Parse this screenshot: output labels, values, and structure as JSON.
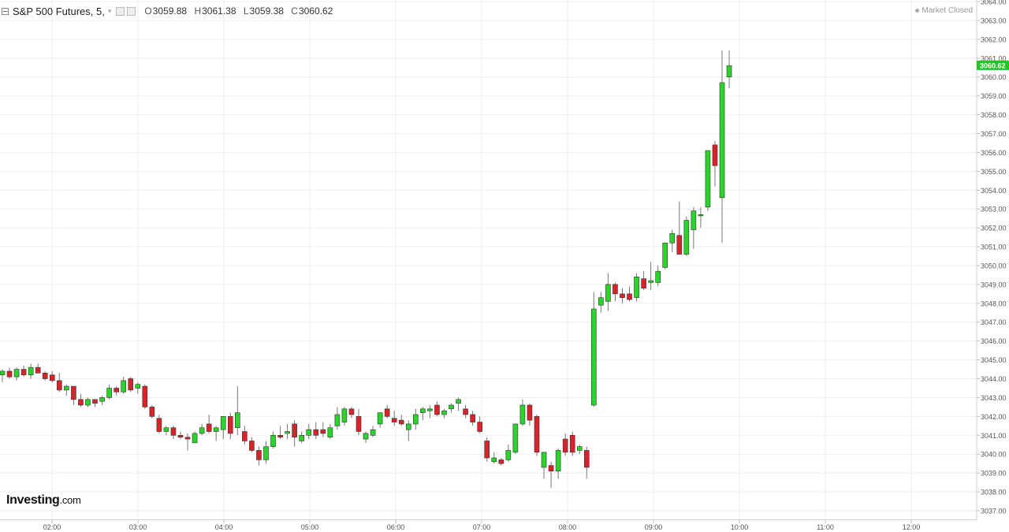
{
  "header": {
    "symbol": "S&P 500 Futures, 5,",
    "o_label": "O",
    "o_value": "3059.88",
    "h_label": "H",
    "h_value": "3061.38",
    "l_label": "L",
    "l_value": "3059.38",
    "c_label": "C",
    "c_value": "3060.62"
  },
  "status": "Market Closed",
  "logo": {
    "name": "Investing",
    "suffix": ".com"
  },
  "colors": {
    "up": "#2ad42a",
    "down": "#d8232a",
    "grid": "#eeeeee",
    "price_tag": "#23c623"
  },
  "chart_data": {
    "type": "candlestick",
    "ylim": [
      3037,
      3064
    ],
    "y_ticks": [
      "3037.00",
      "3038.00",
      "3039.00",
      "3040.00",
      "3041.00",
      "3042.00",
      "3043.00",
      "3044.00",
      "3045.00",
      "3046.00",
      "3047.00",
      "3048.00",
      "3049.00",
      "3050.00",
      "3051.00",
      "3052.00",
      "3053.00",
      "3054.00",
      "3055.00",
      "3056.00",
      "3057.00",
      "3058.00",
      "3059.00",
      "3060.00",
      "3061.00",
      "3062.00",
      "3063.00",
      "3064.00"
    ],
    "x_ticks": [
      "02:00",
      "03:00",
      "04:00",
      "05:00",
      "06:00",
      "07:00",
      "08:00",
      "09:00",
      "10:00",
      "11:00",
      "12:00"
    ],
    "last_price": "3060.62",
    "candles": [
      [
        3044.2,
        3044.5,
        3043.8,
        3044.4
      ],
      [
        3044.4,
        3044.6,
        3044.0,
        3044.1
      ],
      [
        3044.1,
        3044.6,
        3043.9,
        3044.5
      ],
      [
        3044.5,
        3044.7,
        3044.1,
        3044.2
      ],
      [
        3044.2,
        3044.8,
        3044.0,
        3044.6
      ],
      [
        3044.6,
        3044.8,
        3044.3,
        3044.3
      ],
      [
        3044.3,
        3044.4,
        3043.9,
        3044.0
      ],
      [
        3044.2,
        3044.4,
        3043.8,
        3043.9
      ],
      [
        3043.9,
        3044.3,
        3043.3,
        3043.4
      ],
      [
        3043.4,
        3043.7,
        3043.1,
        3043.6
      ],
      [
        3043.6,
        3043.6,
        3042.6,
        3042.9
      ],
      [
        3042.9,
        3043.2,
        3042.5,
        3042.6
      ],
      [
        3042.6,
        3043.0,
        3042.5,
        3042.9
      ],
      [
        3042.9,
        3042.9,
        3042.5,
        3042.7
      ],
      [
        3042.8,
        3043.1,
        3042.6,
        3043.0
      ],
      [
        3043.0,
        3043.7,
        3042.9,
        3043.5
      ],
      [
        3043.5,
        3043.6,
        3043.1,
        3043.3
      ],
      [
        3043.3,
        3044.1,
        3043.2,
        3043.9
      ],
      [
        3044.0,
        3044.1,
        3043.3,
        3043.4
      ],
      [
        3043.5,
        3043.8,
        3043.2,
        3043.7
      ],
      [
        3043.6,
        3043.7,
        3042.4,
        3042.5
      ],
      [
        3042.5,
        3042.6,
        3041.9,
        3042.0
      ],
      [
        3041.9,
        3042.1,
        3041.1,
        3041.2
      ],
      [
        3041.2,
        3041.5,
        3041.0,
        3041.4
      ],
      [
        3041.4,
        3041.5,
        3040.8,
        3041.0
      ],
      [
        3041.0,
        3041.2,
        3040.8,
        3040.9
      ],
      [
        3040.9,
        3041.1,
        3040.2,
        3040.8
      ],
      [
        3040.6,
        3041.2,
        3040.6,
        3041.1
      ],
      [
        3041.1,
        3041.6,
        3041.0,
        3041.4
      ],
      [
        3041.6,
        3042.1,
        3041.1,
        3041.2
      ],
      [
        3041.2,
        3041.5,
        3040.7,
        3041.4
      ],
      [
        3041.3,
        3042.0,
        3040.8,
        3042.0
      ],
      [
        3042.0,
        3042.2,
        3040.8,
        3041.1
      ],
      [
        3041.4,
        3043.6,
        3041.0,
        3042.2
      ],
      [
        3041.2,
        3041.5,
        3040.5,
        3040.7
      ],
      [
        3040.7,
        3040.9,
        3040.1,
        3040.2
      ],
      [
        3040.2,
        3040.4,
        3039.4,
        3039.7
      ],
      [
        3039.7,
        3040.7,
        3039.5,
        3040.4
      ],
      [
        3040.4,
        3041.2,
        3040.3,
        3041.0
      ],
      [
        3041.0,
        3041.5,
        3040.8,
        3040.9
      ],
      [
        3041.1,
        3041.6,
        3040.8,
        3041.2
      ],
      [
        3041.6,
        3041.8,
        3040.4,
        3040.9
      ],
      [
        3040.7,
        3041.2,
        3040.6,
        3041.0
      ],
      [
        3041.0,
        3041.6,
        3040.8,
        3041.3
      ],
      [
        3041.3,
        3041.7,
        3040.8,
        3041.0
      ],
      [
        3041.3,
        3041.7,
        3040.9,
        3041.1
      ],
      [
        3040.9,
        3041.6,
        3040.8,
        3041.4
      ],
      [
        3041.5,
        3042.5,
        3041.3,
        3042.1
      ],
      [
        3041.7,
        3042.5,
        3041.5,
        3042.4
      ],
      [
        3042.4,
        3042.5,
        3041.9,
        3042.1
      ],
      [
        3042.0,
        3042.4,
        3041.0,
        3041.2
      ],
      [
        3040.8,
        3041.2,
        3040.6,
        3041.1
      ],
      [
        3041.0,
        3041.5,
        3040.9,
        3041.3
      ],
      [
        3041.6,
        3042.1,
        3041.4,
        3042.2
      ],
      [
        3042.4,
        3042.6,
        3041.9,
        3042.0
      ],
      [
        3041.9,
        3042.3,
        3041.5,
        3041.7
      ],
      [
        3041.8,
        3042.1,
        3041.5,
        3041.6
      ],
      [
        3041.3,
        3041.8,
        3040.7,
        3041.6
      ],
      [
        3041.6,
        3042.4,
        3041.3,
        3042.1
      ],
      [
        3042.2,
        3042.5,
        3041.8,
        3042.4
      ],
      [
        3042.3,
        3042.6,
        3041.9,
        3042.4
      ],
      [
        3042.6,
        3042.8,
        3042.0,
        3042.1
      ],
      [
        3042.1,
        3042.4,
        3041.9,
        3042.3
      ],
      [
        3042.4,
        3042.7,
        3042.2,
        3042.6
      ],
      [
        3042.7,
        3043.0,
        3042.3,
        3042.9
      ],
      [
        3042.4,
        3042.6,
        3041.9,
        3042.1
      ],
      [
        3042.1,
        3042.3,
        3041.5,
        3041.7
      ],
      [
        3041.7,
        3042.0,
        3041.1,
        3041.2
      ],
      [
        3040.7,
        3040.9,
        3039.6,
        3039.8
      ],
      [
        3039.6,
        3040.1,
        3039.5,
        3039.8
      ],
      [
        3039.7,
        3039.8,
        3039.4,
        3039.5
      ],
      [
        3039.7,
        3040.5,
        3039.6,
        3040.2
      ],
      [
        3040.1,
        3041.5,
        3040.0,
        3041.6
      ],
      [
        3041.6,
        3042.9,
        3041.5,
        3042.6
      ],
      [
        3042.6,
        3042.7,
        3041.5,
        3041.8
      ],
      [
        3042.0,
        3042.1,
        3039.9,
        3040.1
      ],
      [
        3039.3,
        3040.0,
        3038.7,
        3040.1
      ],
      [
        3039.4,
        3039.6,
        3038.2,
        3039.1
      ],
      [
        3039.1,
        3040.3,
        3038.7,
        3040.2
      ],
      [
        3040.8,
        3041.1,
        3039.9,
        3040.1
      ],
      [
        3041.0,
        3041.2,
        3039.9,
        3040.1
      ],
      [
        3040.2,
        3040.5,
        3040.0,
        3040.4
      ],
      [
        3040.2,
        3040.4,
        3038.7,
        3039.3
      ],
      [
        3042.6,
        3048.6,
        3042.5,
        3047.7
      ],
      [
        3047.9,
        3048.6,
        3047.5,
        3048.3
      ],
      [
        3048.1,
        3049.6,
        3047.6,
        3049.0
      ],
      [
        3049.0,
        3049.1,
        3048.1,
        3048.5
      ],
      [
        3048.5,
        3048.8,
        3048.0,
        3048.3
      ],
      [
        3048.5,
        3048.9,
        3048.1,
        3048.2
      ],
      [
        3048.3,
        3049.6,
        3048.1,
        3049.4
      ],
      [
        3049.3,
        3049.7,
        3048.7,
        3048.8
      ],
      [
        3049.1,
        3050.2,
        3048.7,
        3049.2
      ],
      [
        3049.1,
        3050.0,
        3048.9,
        3049.7
      ],
      [
        3049.9,
        3051.2,
        3049.8,
        3051.2
      ],
      [
        3051.2,
        3051.9,
        3050.7,
        3051.7
      ],
      [
        3051.6,
        3053.4,
        3050.6,
        3050.6
      ],
      [
        3050.6,
        3052.6,
        3050.5,
        3052.4
      ],
      [
        3051.9,
        3053.1,
        3050.9,
        3052.9
      ],
      [
        3052.7,
        3053.1,
        3052.0,
        3052.7
      ],
      [
        3053.1,
        3056.1,
        3052.9,
        3056.1
      ],
      [
        3056.4,
        3056.6,
        3054.2,
        3055.3
      ],
      [
        3053.6,
        3061.4,
        3051.2,
        3059.7
      ],
      [
        3060.0,
        3061.4,
        3059.4,
        3060.6
      ]
    ]
  }
}
